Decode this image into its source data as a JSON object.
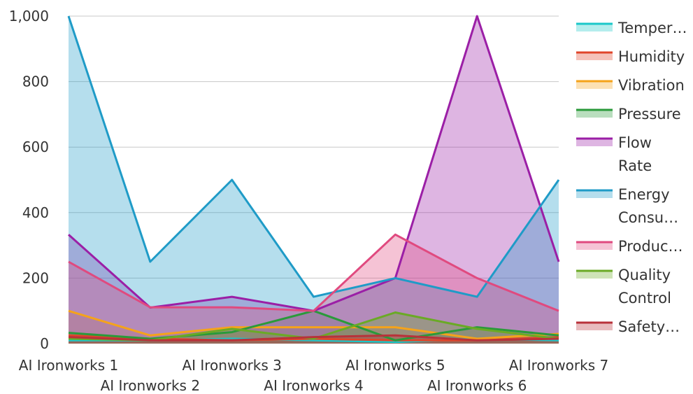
{
  "chart_data": {
    "type": "area",
    "categories": [
      "AI Ironworks 1",
      "AI Ironworks 2",
      "AI Ironworks 3",
      "AI Ironworks 4",
      "AI Ironworks 5",
      "AI Ironworks 6",
      "AI Ironworks 7"
    ],
    "ylim": [
      0,
      1000
    ],
    "yticks": [
      0,
      200,
      400,
      600,
      800,
      1000
    ],
    "ytick_labels": [
      "0",
      "200",
      "400",
      "600",
      "800",
      "1,000"
    ],
    "grid": true,
    "legend_position": "right",
    "series": [
      {
        "name": "Temper…",
        "legend_lines": [
          "Temper…"
        ],
        "color": "#1bc7c9",
        "values": [
          10,
          10,
          15,
          10,
          5,
          15,
          10
        ]
      },
      {
        "name": "Humidity",
        "legend_lines": [
          "Humidity"
        ],
        "color": "#e0452a",
        "values": [
          25,
          15,
          10,
          15,
          10,
          10,
          20
        ]
      },
      {
        "name": "Vibration",
        "legend_lines": [
          "Vibration"
        ],
        "color": "#f5a31a",
        "values": [
          100,
          25,
          50,
          50,
          50,
          15,
          30
        ]
      },
      {
        "name": "Pressure",
        "legend_lines": [
          "Pressure"
        ],
        "color": "#2a9a3a",
        "values": [
          33,
          15,
          35,
          100,
          10,
          50,
          25
        ]
      },
      {
        "name": "Flow Rate",
        "legend_lines": [
          "Flow",
          "Rate"
        ],
        "color": "#9b1fa6",
        "values": [
          333,
          110,
          143,
          100,
          200,
          1000,
          250
        ]
      },
      {
        "name": "Energy Consu…",
        "legend_lines": [
          "Energy",
          "Consu…"
        ],
        "color": "#1f9bc7",
        "values": [
          1000,
          250,
          500,
          143,
          200,
          143,
          500
        ]
      },
      {
        "name": "Produc…",
        "legend_lines": [
          "Produc…"
        ],
        "color": "#e04a7f",
        "values": [
          250,
          111,
          111,
          100,
          333,
          200,
          100
        ]
      },
      {
        "name": "Quality Control",
        "legend_lines": [
          "Quality",
          "Control"
        ],
        "color": "#6aaa25",
        "values": [
          15,
          10,
          45,
          15,
          95,
          45,
          15
        ]
      },
      {
        "name": "Safety…",
        "legend_lines": [
          "Safety…"
        ],
        "color": "#b8323a",
        "values": [
          20,
          10,
          10,
          20,
          25,
          10,
          15
        ]
      }
    ]
  }
}
